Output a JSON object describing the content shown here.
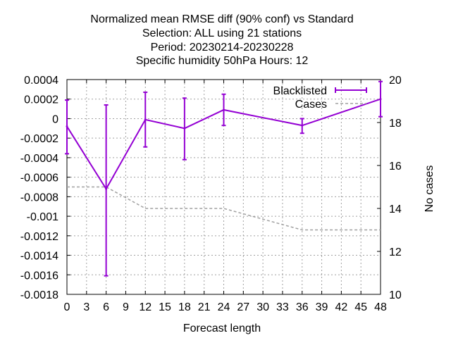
{
  "chart_data": {
    "type": "line",
    "title_lines": [
      "Normalized mean RMSE diff (90% conf) vs Standard",
      "Selection: ALL using     21 stations",
      "Period: 20230214-20230228",
      "Specific humidity 50hPa   Hours:  12"
    ],
    "xlabel": "Forecast length",
    "ylabel": "",
    "y2label": "No cases",
    "xlim": [
      0,
      48
    ],
    "ylim": [
      -0.0018,
      0.0004
    ],
    "y2lim": [
      10,
      20
    ],
    "x_ticks": [
      "0",
      "3",
      "6",
      "9",
      "12",
      "15",
      "18",
      "21",
      "24",
      "27",
      "30",
      "33",
      "36",
      "39",
      "42",
      "45",
      "48"
    ],
    "y_ticks": [
      "0.0004",
      "0.0002",
      "0",
      "-0.0002",
      "-0.0004",
      "-0.0006",
      "-0.0008",
      "-0.001",
      "-0.0012",
      "-0.0014",
      "-0.0016",
      "-0.0018"
    ],
    "y2_ticks": [
      "20",
      "18",
      "16",
      "14",
      "12",
      "10"
    ],
    "grid": true,
    "legend_position": "top-right",
    "colors": {
      "blacklisted": "#9400d3",
      "cases": "#a0a0a0"
    },
    "series": [
      {
        "name": "Blacklisted",
        "axis": "y",
        "x": [
          0,
          6,
          12,
          18,
          24,
          36,
          48
        ],
        "values": [
          -8e-05,
          -0.00072,
          -1e-05,
          -0.0001,
          9e-05,
          -7e-05,
          0.0002
        ],
        "err_low": [
          -0.00036,
          -0.00161,
          -0.00029,
          -0.00042,
          -7e-05,
          -0.00015,
          2e-05
        ],
        "err_high": [
          0.00019,
          0.00014,
          0.00027,
          0.00021,
          0.00025,
          0.0,
          0.00038
        ]
      },
      {
        "name": "Cases",
        "axis": "y2",
        "x": [
          0,
          6,
          12,
          18,
          24,
          36,
          48
        ],
        "values": [
          15,
          15,
          14,
          14,
          14,
          13,
          13
        ]
      }
    ]
  }
}
